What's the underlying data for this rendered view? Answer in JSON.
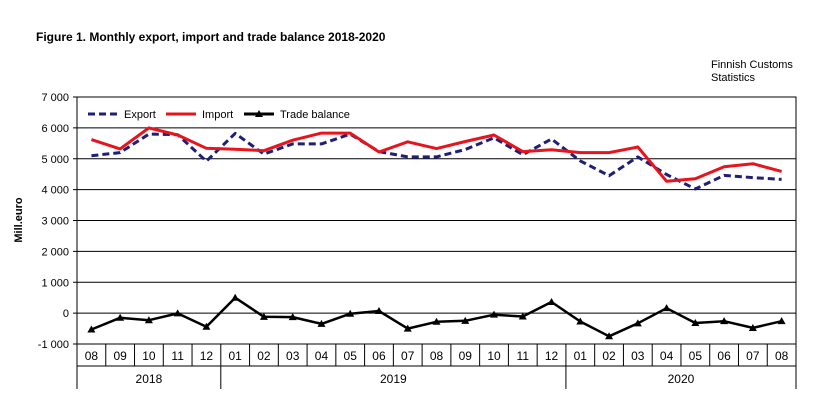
{
  "title": "Figure  1. Monthly  export, import and trade balance 2018-2020",
  "source": {
    "line1": "Finnish Customs",
    "line2": "Statistics"
  },
  "chart_data": {
    "type": "line",
    "title": "Figure  1. Monthly  export, import and trade balance 2018-2020",
    "ylabel": "Mill.euro",
    "xlabel": "",
    "ylim": [
      -1000,
      7000
    ],
    "y_ticks": [
      -1000,
      0,
      1000,
      2000,
      3000,
      4000,
      5000,
      6000,
      7000
    ],
    "y_tick_labels": [
      "-1 000",
      "0",
      "1 000",
      "2 000",
      "3 000",
      "4 000",
      "5 000",
      "6 000",
      "7 000"
    ],
    "grid": "horizontal",
    "legend_position": "top-left",
    "categories": [
      "08",
      "09",
      "10",
      "11",
      "12",
      "01",
      "02",
      "03",
      "04",
      "05",
      "06",
      "07",
      "08",
      "09",
      "10",
      "11",
      "12",
      "01",
      "02",
      "03",
      "04",
      "05",
      "06",
      "07",
      "08"
    ],
    "year_groups": [
      {
        "label": "2018",
        "count": 5
      },
      {
        "label": "2019",
        "count": 12
      },
      {
        "label": "2020",
        "count": 8
      }
    ],
    "series": [
      {
        "name": "Export",
        "color": "#1f1f7a",
        "style": "dashed",
        "values": [
          5100,
          5200,
          5800,
          5780,
          4920,
          5820,
          5150,
          5480,
          5480,
          5800,
          5230,
          5060,
          5060,
          5300,
          5680,
          5130,
          5640,
          4930,
          4450,
          5060,
          4490,
          4020,
          4460,
          4390,
          4330
        ]
      },
      {
        "name": "Import",
        "color": "#e8141c",
        "style": "solid",
        "values": [
          5620,
          5320,
          6000,
          5770,
          5340,
          5310,
          5260,
          5600,
          5830,
          5830,
          5220,
          5550,
          5330,
          5560,
          5770,
          5230,
          5290,
          5200,
          5200,
          5380,
          4270,
          4350,
          4740,
          4840,
          4590
        ]
      },
      {
        "name": "Trade balance",
        "color": "#000000",
        "style": "solid-triangle-markers",
        "values": [
          -530,
          -150,
          -230,
          -10,
          -440,
          500,
          -120,
          -130,
          -350,
          -20,
          70,
          -500,
          -280,
          -250,
          -50,
          -110,
          360,
          -270,
          -750,
          -330,
          160,
          -320,
          -260,
          -480,
          -260
        ]
      }
    ]
  }
}
